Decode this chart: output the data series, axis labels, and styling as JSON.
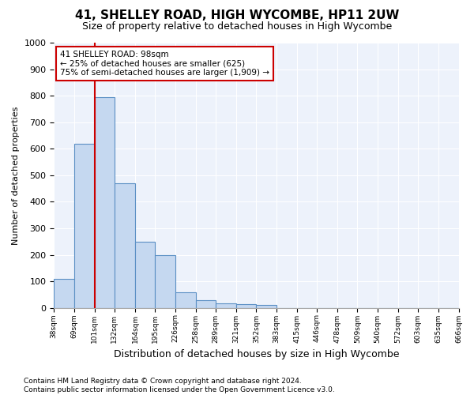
{
  "title": "41, SHELLEY ROAD, HIGH WYCOMBE, HP11 2UW",
  "subtitle": "Size of property relative to detached houses in High Wycombe",
  "xlabel": "Distribution of detached houses by size in High Wycombe",
  "ylabel": "Number of detached properties",
  "bar_values": [
    110,
    620,
    795,
    470,
    250,
    200,
    60,
    28,
    18,
    13,
    11,
    0,
    0,
    0,
    0,
    0,
    0,
    0,
    0,
    0
  ],
  "bar_edges": [
    38,
    69,
    101,
    132,
    164,
    195,
    226,
    258,
    289,
    321,
    352,
    383,
    415,
    446,
    478,
    509,
    540,
    572,
    603,
    635,
    666
  ],
  "bar_color": "#c5d8f0",
  "bar_edge_color": "#5a8fc4",
  "vline_x": 101,
  "vline_color": "#cc0000",
  "ylim": [
    0,
    1000
  ],
  "yticks": [
    0,
    100,
    200,
    300,
    400,
    500,
    600,
    700,
    800,
    900,
    1000
  ],
  "annotation_text": "41 SHELLEY ROAD: 98sqm\n← 25% of detached houses are smaller (625)\n75% of semi-detached houses are larger (1,909) →",
  "annotation_box_color": "#ffffff",
  "annotation_box_edge_color": "#cc0000",
  "footer_line1": "Contains HM Land Registry data © Crown copyright and database right 2024.",
  "footer_line2": "Contains public sector information licensed under the Open Government Licence v3.0.",
  "bg_color": "#ffffff",
  "plot_bg_color": "#edf2fb",
  "grid_color": "#ffffff",
  "title_fontsize": 11,
  "subtitle_fontsize": 9,
  "xlabel_fontsize": 9,
  "ylabel_fontsize": 8,
  "footer_fontsize": 6.5,
  "annot_fontsize": 7.5
}
